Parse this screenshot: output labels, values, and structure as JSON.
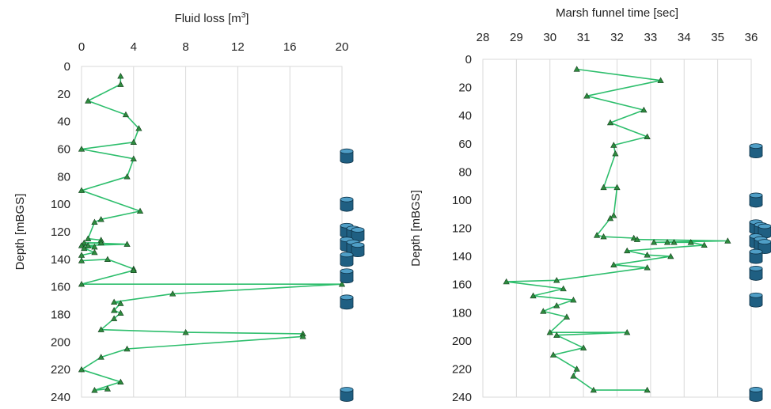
{
  "chart_data": [
    {
      "type": "line",
      "xlabel": "Fluid loss [m³]",
      "xlabel_base": "Fluid loss [m",
      "xlabel_sup": "3",
      "xlabel_end": "]",
      "ylabel": "Depth [mBGS]",
      "xlim": [
        0,
        20
      ],
      "ylim": [
        0,
        240
      ],
      "y_reversed": true,
      "x_axis_position": "top",
      "xticks": [
        "0",
        "4",
        "8",
        "12",
        "16",
        "20"
      ],
      "yticks": [
        "0",
        "20",
        "40",
        "60",
        "80",
        "100",
        "120",
        "140",
        "160",
        "180",
        "200",
        "220",
        "240"
      ],
      "grid": "vertical",
      "line_color": "#2dbe6c",
      "marker_color": "#2e8b3e",
      "points": [
        {
          "x": 3.0,
          "y": 7
        },
        {
          "x": 3.0,
          "y": 13
        },
        {
          "x": 0.5,
          "y": 25
        },
        {
          "x": 3.4,
          "y": 35
        },
        {
          "x": 4.4,
          "y": 45
        },
        {
          "x": 4.0,
          "y": 55
        },
        {
          "x": 0.0,
          "y": 60
        },
        {
          "x": 4.0,
          "y": 67
        },
        {
          "x": 3.5,
          "y": 80
        },
        {
          "x": 0.0,
          "y": 90
        },
        {
          "x": 4.5,
          "y": 105
        },
        {
          "x": 1.5,
          "y": 111
        },
        {
          "x": 1.0,
          "y": 113
        },
        {
          "x": 0.5,
          "y": 125
        },
        {
          "x": 1.5,
          "y": 126
        },
        {
          "x": 1.5,
          "y": 128
        },
        {
          "x": 0.2,
          "y": 128
        },
        {
          "x": 3.5,
          "y": 129
        },
        {
          "x": 0.0,
          "y": 130
        },
        {
          "x": 0.5,
          "y": 130
        },
        {
          "x": 1.0,
          "y": 131
        },
        {
          "x": 0.2,
          "y": 132
        },
        {
          "x": 1.0,
          "y": 135
        },
        {
          "x": 0.0,
          "y": 137
        },
        {
          "x": 0.0,
          "y": 141
        },
        {
          "x": 2.0,
          "y": 140
        },
        {
          "x": 4.0,
          "y": 147
        },
        {
          "x": 4.0,
          "y": 148
        },
        {
          "x": 0.0,
          "y": 158
        },
        {
          "x": 20.0,
          "y": 158
        },
        {
          "x": 7.0,
          "y": 165
        },
        {
          "x": 2.5,
          "y": 171
        },
        {
          "x": 3.0,
          "y": 172
        },
        {
          "x": 2.5,
          "y": 177
        },
        {
          "x": 3.0,
          "y": 179
        },
        {
          "x": 2.5,
          "y": 183
        },
        {
          "x": 1.5,
          "y": 191
        },
        {
          "x": 8.0,
          "y": 193
        },
        {
          "x": 17.0,
          "y": 194
        },
        {
          "x": 17.0,
          "y": 196
        },
        {
          "x": 3.5,
          "y": 205
        },
        {
          "x": 1.5,
          "y": 211
        },
        {
          "x": 0.0,
          "y": 220
        },
        {
          "x": 3.0,
          "y": 229
        },
        {
          "x": 1.0,
          "y": 235
        },
        {
          "x": 2.0,
          "y": 234
        }
      ],
      "cylinder_depths": [
        65,
        100,
        119,
        121,
        122,
        129,
        131,
        133,
        140,
        152,
        171,
        238
      ]
    },
    {
      "type": "line",
      "xlabel": "Marsh funnel time [sec]",
      "ylabel": "Depth [mBGS]",
      "xlim": [
        28,
        36
      ],
      "ylim": [
        0,
        240
      ],
      "y_reversed": true,
      "x_axis_position": "top",
      "xticks": [
        "28",
        "29",
        "30",
        "31",
        "32",
        "33",
        "34",
        "35",
        "36"
      ],
      "yticks": [
        "0",
        "20",
        "40",
        "60",
        "80",
        "100",
        "120",
        "140",
        "160",
        "180",
        "200",
        "220",
        "240"
      ],
      "grid": "vertical",
      "line_color": "#2dbe6c",
      "marker_color": "#2e8b3e",
      "points": [
        {
          "x": 30.8,
          "y": 7
        },
        {
          "x": 33.3,
          "y": 15
        },
        {
          "x": 31.1,
          "y": 26
        },
        {
          "x": 32.8,
          "y": 36
        },
        {
          "x": 31.8,
          "y": 45
        },
        {
          "x": 32.9,
          "y": 55
        },
        {
          "x": 31.9,
          "y": 61
        },
        {
          "x": 31.95,
          "y": 67
        },
        {
          "x": 31.6,
          "y": 91
        },
        {
          "x": 32.0,
          "y": 91
        },
        {
          "x": 31.9,
          "y": 111
        },
        {
          "x": 31.8,
          "y": 113
        },
        {
          "x": 31.4,
          "y": 125
        },
        {
          "x": 31.6,
          "y": 126
        },
        {
          "x": 32.5,
          "y": 127
        },
        {
          "x": 32.6,
          "y": 128
        },
        {
          "x": 35.3,
          "y": 129
        },
        {
          "x": 33.1,
          "y": 130
        },
        {
          "x": 33.5,
          "y": 130
        },
        {
          "x": 33.7,
          "y": 130
        },
        {
          "x": 34.2,
          "y": 130
        },
        {
          "x": 34.6,
          "y": 132
        },
        {
          "x": 32.3,
          "y": 136
        },
        {
          "x": 32.9,
          "y": 139
        },
        {
          "x": 33.6,
          "y": 140
        },
        {
          "x": 31.9,
          "y": 146
        },
        {
          "x": 32.9,
          "y": 148
        },
        {
          "x": 30.2,
          "y": 157
        },
        {
          "x": 28.7,
          "y": 158
        },
        {
          "x": 30.4,
          "y": 163
        },
        {
          "x": 29.5,
          "y": 168
        },
        {
          "x": 30.7,
          "y": 171
        },
        {
          "x": 30.2,
          "y": 175
        },
        {
          "x": 29.8,
          "y": 179
        },
        {
          "x": 30.5,
          "y": 183
        },
        {
          "x": 30.0,
          "y": 194
        },
        {
          "x": 32.3,
          "y": 194
        },
        {
          "x": 30.2,
          "y": 196
        },
        {
          "x": 31.0,
          "y": 205
        },
        {
          "x": 30.1,
          "y": 210
        },
        {
          "x": 30.8,
          "y": 220
        },
        {
          "x": 30.7,
          "y": 225
        },
        {
          "x": 31.3,
          "y": 235
        },
        {
          "x": 32.9,
          "y": 235
        }
      ],
      "cylinder_depths": [
        65,
        100,
        119,
        121,
        122,
        129,
        131,
        133,
        140,
        152,
        171,
        238
      ]
    }
  ]
}
